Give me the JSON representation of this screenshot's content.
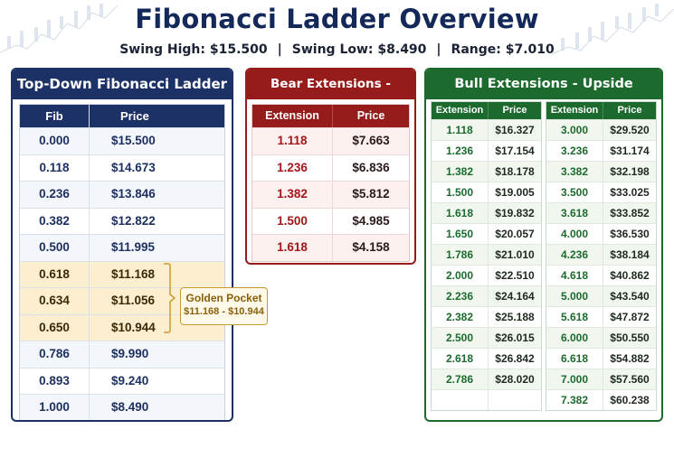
{
  "header": {
    "title": "Fibonacci Ladder Overview",
    "swing_high": "Swing High: $15.500",
    "swing_low": "Swing Low: $8.490",
    "range": "Range: $7.010",
    "separator": "|"
  },
  "ladder": {
    "title": "Top-Down Fibonacci Ladder",
    "col_fib": "Fib",
    "col_price": "Price",
    "rows": [
      {
        "fib": "0.000",
        "price": "$15.500"
      },
      {
        "fib": "0.118",
        "price": "$14.673"
      },
      {
        "fib": "0.236",
        "price": "$13.846"
      },
      {
        "fib": "0.382",
        "price": "$12.822"
      },
      {
        "fib": "0.500",
        "price": "$11.995"
      },
      {
        "fib": "0.618",
        "price": "$11.168"
      },
      {
        "fib": "0.634",
        "price": "$11.056"
      },
      {
        "fib": "0.650",
        "price": "$10.944"
      },
      {
        "fib": "0.786",
        "price": "$9.990"
      },
      {
        "fib": "0.893",
        "price": "$9.240"
      },
      {
        "fib": "1.000",
        "price": "$8.490"
      }
    ]
  },
  "golden_pocket": {
    "label": "Golden Pocket",
    "range": "$11.168 - $10.944"
  },
  "bear": {
    "title": "Bear Extensions - Downside",
    "col_ext": "Extension",
    "col_price": "Price",
    "rows": [
      {
        "ext": "1.118",
        "price": "$7.663"
      },
      {
        "ext": "1.236",
        "price": "$6.836"
      },
      {
        "ext": "1.382",
        "price": "$5.812"
      },
      {
        "ext": "1.500",
        "price": "$4.985"
      },
      {
        "ext": "1.618",
        "price": "$4.158"
      }
    ]
  },
  "bull": {
    "title": "Bull Extensions - Upside",
    "col_ext": "Extension",
    "col_price": "Price",
    "left": [
      {
        "ext": "1.118",
        "price": "$16.327"
      },
      {
        "ext": "1.236",
        "price": "$17.154"
      },
      {
        "ext": "1.382",
        "price": "$18.178"
      },
      {
        "ext": "1.500",
        "price": "$19.005"
      },
      {
        "ext": "1.618",
        "price": "$19.832"
      },
      {
        "ext": "1.650",
        "price": "$20.057"
      },
      {
        "ext": "1.786",
        "price": "$21.010"
      },
      {
        "ext": "2.000",
        "price": "$22.510"
      },
      {
        "ext": "2.236",
        "price": "$24.164"
      },
      {
        "ext": "2.382",
        "price": "$25.188"
      },
      {
        "ext": "2.500",
        "price": "$26.015"
      },
      {
        "ext": "2.618",
        "price": "$26.842"
      },
      {
        "ext": "2.786",
        "price": "$28.020"
      }
    ],
    "right": [
      {
        "ext": "3.000",
        "price": "$29.520"
      },
      {
        "ext": "3.236",
        "price": "$31.174"
      },
      {
        "ext": "3.382",
        "price": "$32.198"
      },
      {
        "ext": "3.500",
        "price": "$33.025"
      },
      {
        "ext": "3.618",
        "price": "$33.852"
      },
      {
        "ext": "4.000",
        "price": "$36.530"
      },
      {
        "ext": "4.236",
        "price": "$38.184"
      },
      {
        "ext": "4.618",
        "price": "$40.862"
      },
      {
        "ext": "5.000",
        "price": "$43.540"
      },
      {
        "ext": "5.618",
        "price": "$47.872"
      },
      {
        "ext": "6.000",
        "price": "$50.550"
      },
      {
        "ext": "6.618",
        "price": "$54.882"
      },
      {
        "ext": "7.000",
        "price": "$57.560"
      },
      {
        "ext": "7.382",
        "price": "$60.238"
      }
    ]
  },
  "colors": {
    "navy": "#1c3266",
    "bear_red": "#961b1b",
    "bull_green": "#1c6a2e",
    "gold": "#c99a2e"
  }
}
